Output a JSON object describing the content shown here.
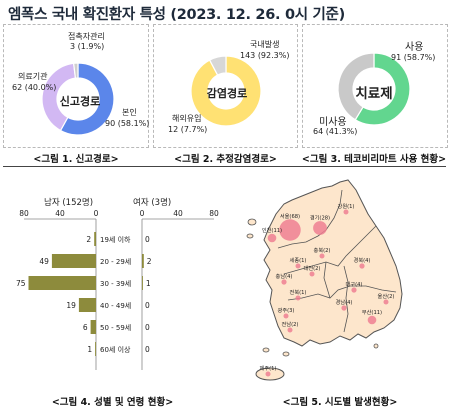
{
  "page": {
    "title": "엠폭스 국내 확진환자 특성 (2023. 12. 26. 0시 기준)"
  },
  "colors": {
    "report_blue": "#5b86ea",
    "report_lavender": "#d2b8f3",
    "report_gray": "#cfcfcf",
    "infection_yellow": "#ffe173",
    "infection_gray": "#d7d7d7",
    "tecovirimat_green": "#62d68f",
    "tecovirimat_gray": "#c9c9c9",
    "bar_olive": "#8d8b3c",
    "map_fill": "#fde6cc",
    "map_line": "#555555",
    "dot_pink": "#ee7f92"
  },
  "chart_data": [
    {
      "id": "report_path",
      "type": "pie",
      "caption": "<그림 1. 신고경로>",
      "center_label": "신고경로",
      "slices": [
        {
          "name": "본인",
          "value": 90,
          "percent": 58.1,
          "label": "본인",
          "value_text": "90 (58.1%)",
          "color": "#5b86ea"
        },
        {
          "name": "의료기관",
          "value": 62,
          "percent": 40.0,
          "label": "의료기관",
          "value_text": "62 (40.0%)",
          "color": "#d2b8f3"
        },
        {
          "name": "접촉자관리",
          "value": 3,
          "percent": 1.9,
          "label": "접촉자관리",
          "value_text": "3 (1.9%)",
          "color": "#cfcfcf"
        }
      ]
    },
    {
      "id": "infection_route",
      "type": "pie",
      "caption": "<그림 2. 추정감염경로>",
      "center_label": "감염경로",
      "slices": [
        {
          "name": "국내발생",
          "value": 143,
          "percent": 92.3,
          "label": "국내발생",
          "value_text": "143 (92.3%)",
          "color": "#ffe173"
        },
        {
          "name": "해외유입",
          "value": 12,
          "percent": 7.7,
          "label": "해외유입",
          "value_text": "12 (7.7%)",
          "color": "#d7d7d7"
        }
      ]
    },
    {
      "id": "tecovirimat",
      "type": "pie",
      "caption": "<그림 3. 테코비리마트 사용 현황>",
      "center_label": "치료제",
      "slices": [
        {
          "name": "사용",
          "value": 91,
          "percent": 58.7,
          "label": "사용",
          "value_text": "91 (58.7%)",
          "color": "#62d68f"
        },
        {
          "name": "미사용",
          "value": 64,
          "percent": 41.3,
          "label": "미사용",
          "value_text": "64 (41.3%)",
          "color": "#c9c9c9"
        }
      ]
    },
    {
      "id": "sex_age",
      "type": "bar",
      "caption": "<그림 4. 성별 및 연령 현황>",
      "male_title": "남자 (152명)",
      "female_title": "여자 (3명)",
      "male_ticks": [
        "80",
        "40",
        "0"
      ],
      "female_ticks": [
        "0",
        "40",
        "80"
      ],
      "xlim": [
        0,
        80
      ],
      "categories": [
        "19세 이하",
        "20 - 29세",
        "30 - 39세",
        "40 - 49세",
        "50 - 59세",
        "60세 이상"
      ],
      "series": [
        {
          "name": "남자",
          "values": [
            2,
            49,
            75,
            19,
            6,
            1
          ]
        },
        {
          "name": "여자",
          "values": [
            0,
            2,
            1,
            0,
            0,
            0
          ]
        }
      ]
    }
  ],
  "map": {
    "caption": "<그림 5. 시도별 발생현황>",
    "regions": [
      {
        "name": "서울",
        "label": "서울(68)",
        "count": 68
      },
      {
        "name": "경기",
        "label": "경기(28)",
        "count": 28
      },
      {
        "name": "인천",
        "label": "인천(11)",
        "count": 11
      },
      {
        "name": "강원",
        "label": "강원(1)",
        "count": 1
      },
      {
        "name": "충북",
        "label": "충북(2)",
        "count": 2
      },
      {
        "name": "세종",
        "label": "세종(1)",
        "count": 1
      },
      {
        "name": "대전",
        "label": "대전(2)",
        "count": 2
      },
      {
        "name": "충남",
        "label": "충남(4)",
        "count": 4
      },
      {
        "name": "경북",
        "label": "경북(4)",
        "count": 4
      },
      {
        "name": "대구",
        "label": "대구(4)",
        "count": 4
      },
      {
        "name": "전북",
        "label": "전북(1)",
        "count": 1
      },
      {
        "name": "울산",
        "label": "울산(2)",
        "count": 2
      },
      {
        "name": "경남",
        "label": "경남(4)",
        "count": 4
      },
      {
        "name": "부산",
        "label": "부산(11)",
        "count": 11
      },
      {
        "name": "광주",
        "label": "광주(3)",
        "count": 3
      },
      {
        "name": "전남",
        "label": "전남(2)",
        "count": 2
      },
      {
        "name": "제주",
        "label": "제주(1)",
        "count": 1
      }
    ]
  }
}
